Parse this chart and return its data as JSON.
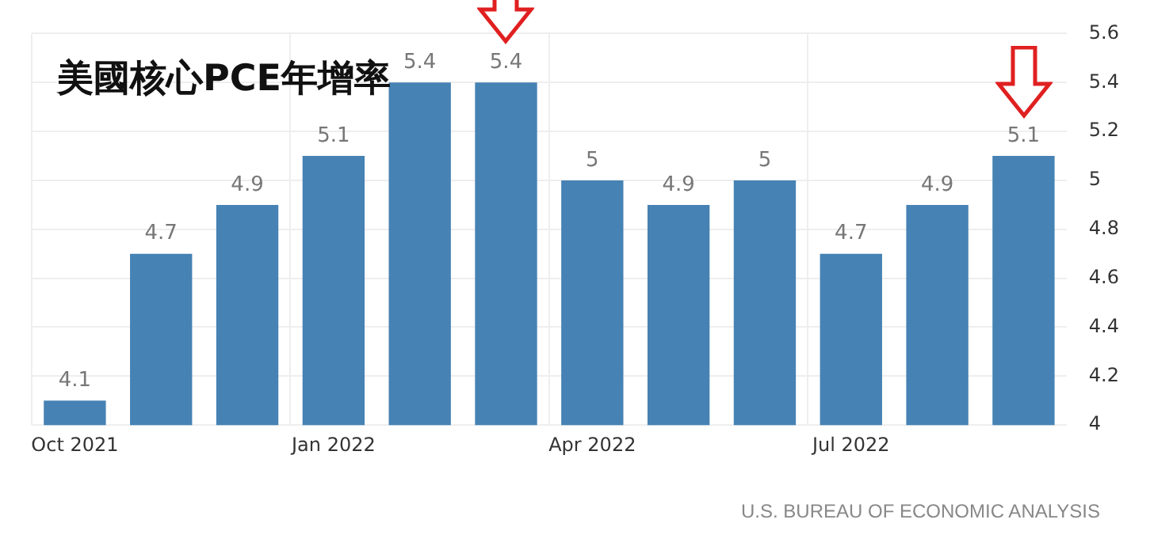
{
  "chart_data": {
    "type": "bar",
    "title": "美國核心PCE年增率",
    "categories": [
      "Oct 2021",
      null,
      null,
      "Jan 2022",
      null,
      null,
      "Apr 2022",
      null,
      null,
      "Jul 2022",
      null,
      null
    ],
    "values": [
      4.1,
      4.7,
      4.9,
      5.1,
      5.4,
      5.4,
      5,
      4.9,
      5,
      4.7,
      4.9,
      5.1
    ],
    "color": "#4682b4",
    "ylim": [
      4,
      5.6
    ],
    "yticks": [
      4,
      4.2,
      4.4,
      4.6,
      4.8,
      5,
      5.2,
      5.4,
      5.6
    ],
    "grid": true,
    "data_labels": true,
    "annotations": [
      "U.S. BUREAU OF ECONOMIC ANALYSIS"
    ]
  }
}
